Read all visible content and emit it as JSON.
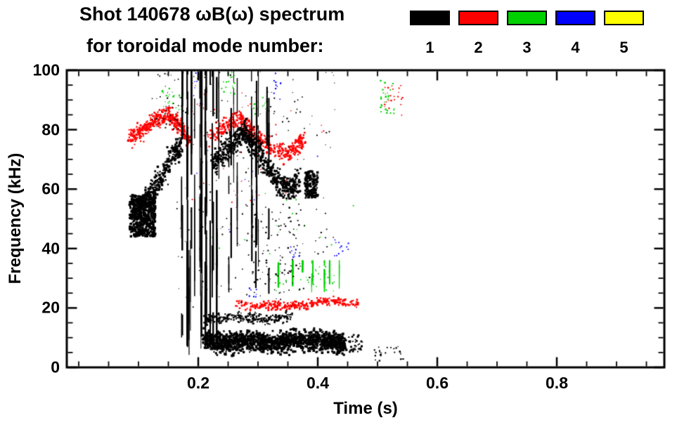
{
  "header": {
    "title_line1": "Shot 140678 ωB(ω) spectrum",
    "title_line2": "for toroidal mode number:"
  },
  "legend": {
    "items": [
      {
        "label": "1",
        "color": "#000000"
      },
      {
        "label": "2",
        "color": "#ff0000"
      },
      {
        "label": "3",
        "color": "#00d000"
      },
      {
        "label": "4",
        "color": "#0000ff"
      },
      {
        "label": "5",
        "color": "#ffff00"
      }
    ]
  },
  "chart_data": {
    "type": "scatter",
    "title": "Shot 140678 ωB(ω) spectrum for toroidal mode number: 1-5",
    "xlabel": "Time (s)",
    "ylabel": "Frequency (kHz)",
    "xlim": [
      -0.02,
      0.98
    ],
    "ylim": [
      0,
      100
    ],
    "x_major_ticks": [
      0.2,
      0.4,
      0.6,
      0.8
    ],
    "x_tick_labels": [
      "0.2",
      "0.4",
      "0.6",
      "0.8"
    ],
    "x_minor_step": 0.05,
    "y_major_ticks": [
      0,
      20,
      40,
      60,
      80,
      100
    ],
    "y_tick_labels": [
      "0",
      "20",
      "40",
      "60",
      "80",
      "100"
    ],
    "y_minor_step": 5,
    "grid": false,
    "legend_position": "top-right",
    "axis_color": "#000000",
    "series": [
      {
        "name": "n=1",
        "color": "#000000",
        "clusters": [
          {
            "kind": "blob",
            "t": [
              0.085,
              0.128
            ],
            "f": [
              44,
              58
            ],
            "count": 500,
            "dot": [
              2,
              4
            ]
          },
          {
            "kind": "path",
            "points": [
              [
                0.09,
                50
              ],
              [
                0.115,
                57
              ],
              [
                0.14,
                65
              ],
              [
                0.16,
                72
              ],
              [
                0.172,
                75
              ]
            ],
            "width": 6,
            "count": 350,
            "dot": [
              2,
              3.5
            ]
          },
          {
            "kind": "vstreaks",
            "t": [
              0.168,
              0.235
            ],
            "f": [
              3,
              100
            ],
            "lines": 22,
            "seg": [
              6,
              30
            ]
          },
          {
            "kind": "vstreaks",
            "t": [
              0.24,
              0.37
            ],
            "f": [
              20,
              100
            ],
            "lines": 12,
            "seg": [
              4,
              18
            ]
          },
          {
            "kind": "path",
            "points": [
              [
                0.225,
                68
              ],
              [
                0.25,
                74
              ],
              [
                0.275,
                79
              ],
              [
                0.3,
                73
              ],
              [
                0.325,
                64
              ],
              [
                0.35,
                60
              ],
              [
                0.368,
                62
              ]
            ],
            "width": 6,
            "count": 650,
            "dot": [
              2,
              3.5
            ]
          },
          {
            "kind": "blob",
            "t": [
              0.378,
              0.4
            ],
            "f": [
              57,
              66
            ],
            "count": 160,
            "dot": [
              2,
              3.5
            ]
          },
          {
            "kind": "path",
            "points": [
              [
                0.21,
                9
              ],
              [
                0.25,
                8
              ],
              [
                0.29,
                9
              ],
              [
                0.33,
                8
              ],
              [
                0.37,
                9
              ],
              [
                0.41,
                9
              ],
              [
                0.445,
                8
              ]
            ],
            "width": 5,
            "count": 1400,
            "dot": [
              2,
              4
            ]
          },
          {
            "kind": "path",
            "points": [
              [
                0.21,
                16
              ],
              [
                0.26,
                17
              ],
              [
                0.31,
                16
              ],
              [
                0.355,
                17
              ]
            ],
            "width": 2.5,
            "count": 260,
            "dot": [
              1.5,
              3
            ]
          },
          {
            "kind": "blob",
            "t": [
              0.16,
              0.43
            ],
            "f": [
              20,
              100
            ],
            "count": 220,
            "dot": [
              1,
              2.2
            ]
          },
          {
            "kind": "blob",
            "t": [
              0.29,
              0.37
            ],
            "f": [
              25,
              55
            ],
            "count": 80,
            "dot": [
              1.2,
              2.5
            ]
          },
          {
            "kind": "blob",
            "t": [
              0.12,
              0.175
            ],
            "f": [
              80,
              100
            ],
            "count": 45,
            "dot": [
              1,
              2.2
            ]
          },
          {
            "kind": "blob",
            "t": [
              0.495,
              0.545
            ],
            "f": [
              2,
              7
            ],
            "count": 26,
            "dot": [
              1.2,
              2.5
            ]
          },
          {
            "kind": "blob",
            "t": [
              0.452,
              0.475
            ],
            "f": [
              5,
              11
            ],
            "count": 40,
            "dot": [
              1.5,
              3
            ]
          }
        ]
      },
      {
        "name": "n=2",
        "color": "#ff0000",
        "clusters": [
          {
            "kind": "path",
            "points": [
              [
                0.085,
                77
              ],
              [
                0.11,
                80
              ],
              [
                0.135,
                84
              ],
              [
                0.152,
                85
              ],
              [
                0.17,
                81
              ],
              [
                0.187,
                76
              ]
            ],
            "width": 4,
            "count": 380,
            "dot": [
              1.8,
              3.2
            ]
          },
          {
            "kind": "path",
            "points": [
              [
                0.218,
                77
              ],
              [
                0.245,
                81
              ],
              [
                0.268,
                84
              ],
              [
                0.295,
                79
              ],
              [
                0.32,
                74
              ],
              [
                0.345,
                72
              ],
              [
                0.362,
                74
              ],
              [
                0.378,
                77
              ]
            ],
            "width": 4,
            "count": 430,
            "dot": [
              1.8,
              3.2
            ]
          },
          {
            "kind": "path",
            "points": [
              [
                0.265,
                22
              ],
              [
                0.29,
                20.5
              ],
              [
                0.32,
                21
              ],
              [
                0.35,
                20.5
              ],
              [
                0.38,
                21
              ],
              [
                0.41,
                22
              ],
              [
                0.44,
                22
              ],
              [
                0.468,
                21
              ]
            ],
            "width": 2.2,
            "count": 300,
            "dot": [
              1.8,
              3
            ]
          },
          {
            "kind": "blob",
            "t": [
              0.17,
              0.42
            ],
            "f": [
              55,
              95
            ],
            "count": 45,
            "dot": [
              1,
              2
            ]
          },
          {
            "kind": "blob",
            "t": [
              0.512,
              0.542
            ],
            "f": [
              84,
              95
            ],
            "count": 22,
            "dot": [
              1.2,
              2.4
            ]
          },
          {
            "kind": "blob",
            "t": [
              0.19,
              0.215
            ],
            "f": [
              86,
              100
            ],
            "count": 14,
            "dot": [
              1,
              2
            ]
          }
        ]
      },
      {
        "name": "n=3",
        "color": "#00d000",
        "clusters": [
          {
            "kind": "blob",
            "t": [
              0.138,
              0.175
            ],
            "f": [
              85,
              94
            ],
            "count": 24,
            "dot": [
              1.2,
              2.4
            ]
          },
          {
            "kind": "blob",
            "t": [
              0.238,
              0.262
            ],
            "f": [
              92,
              100
            ],
            "count": 18,
            "dot": [
              1.2,
              2.4
            ]
          },
          {
            "kind": "blob",
            "t": [
              0.293,
              0.315
            ],
            "f": [
              85,
              91
            ],
            "count": 13,
            "dot": [
              1.2,
              2.4
            ]
          },
          {
            "kind": "vstreaks",
            "t": [
              0.32,
              0.44
            ],
            "f": [
              24,
              36
            ],
            "lines": 9,
            "seg": [
              3,
              8
            ]
          },
          {
            "kind": "blob",
            "t": [
              0.33,
              0.43
            ],
            "f": [
              25,
              34
            ],
            "count": 30,
            "dot": [
              1.2,
              2.2
            ]
          },
          {
            "kind": "blob",
            "t": [
              0.505,
              0.528
            ],
            "f": [
              85,
              97
            ],
            "count": 26,
            "dot": [
              1.3,
              2.6
            ]
          },
          {
            "kind": "blob",
            "t": [
              0.19,
              0.46
            ],
            "f": [
              38,
              62
            ],
            "count": 16,
            "dot": [
              1,
              2
            ]
          }
        ]
      },
      {
        "name": "n=4",
        "color": "#0000ff",
        "clusters": [
          {
            "kind": "blob",
            "t": [
              0.192,
              0.206
            ],
            "f": [
              88,
              100
            ],
            "count": 12,
            "dot": [
              1.2,
              2.2
            ]
          },
          {
            "kind": "blob",
            "t": [
              0.324,
              0.34
            ],
            "f": [
              90,
              99
            ],
            "count": 10,
            "dot": [
              1.2,
              2.2
            ]
          },
          {
            "kind": "blob",
            "t": [
              0.354,
              0.37
            ],
            "f": [
              37,
              44
            ],
            "count": 9,
            "dot": [
              1.2,
              2.2
            ]
          },
          {
            "kind": "blob",
            "t": [
              0.424,
              0.452
            ],
            "f": [
              37,
              43
            ],
            "count": 12,
            "dot": [
              1.2,
              2.2
            ]
          },
          {
            "kind": "blob",
            "t": [
              0.283,
              0.3
            ],
            "f": [
              23,
              27
            ],
            "count": 7,
            "dot": [
              1.2,
              2.2
            ]
          },
          {
            "kind": "blob",
            "t": [
              0.19,
              0.42
            ],
            "f": [
              45,
              75
            ],
            "count": 10,
            "dot": [
              1,
              1.8
            ]
          }
        ]
      },
      {
        "name": "n=5",
        "color": "#ffff00",
        "clusters": []
      }
    ]
  }
}
